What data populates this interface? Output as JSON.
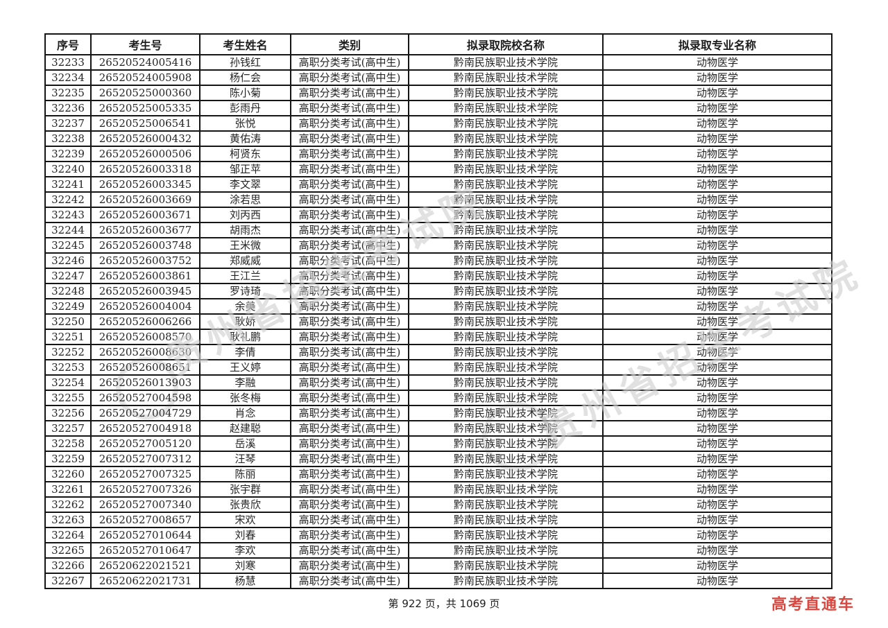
{
  "watermark": {
    "text": "贵州省招生考试院"
  },
  "table": {
    "column_keys": [
      "serial",
      "candidate-no",
      "name",
      "category",
      "institution",
      "major"
    ],
    "headers": [
      "序号",
      "考生号",
      "考生姓名",
      "类别",
      "拟录取院校名称",
      "拟录取专业名称"
    ],
    "rows": [
      [
        "32233",
        "26520524005416",
        "孙钱红",
        "高职分类考试(高中生)",
        "黔南民族职业技术学院",
        "动物医学"
      ],
      [
        "32234",
        "26520524005908",
        "杨仁会",
        "高职分类考试(高中生)",
        "黔南民族职业技术学院",
        "动物医学"
      ],
      [
        "32235",
        "26520525000360",
        "陈小菊",
        "高职分类考试(高中生)",
        "黔南民族职业技术学院",
        "动物医学"
      ],
      [
        "32236",
        "26520525005335",
        "彭雨丹",
        "高职分类考试(高中生)",
        "黔南民族职业技术学院",
        "动物医学"
      ],
      [
        "32237",
        "26520525006541",
        "张悦",
        "高职分类考试(高中生)",
        "黔南民族职业技术学院",
        "动物医学"
      ],
      [
        "32238",
        "26520526000432",
        "黄佑涛",
        "高职分类考试(高中生)",
        "黔南民族职业技术学院",
        "动物医学"
      ],
      [
        "32239",
        "26520526000506",
        "柯贤东",
        "高职分类考试(高中生)",
        "黔南民族职业技术学院",
        "动物医学"
      ],
      [
        "32240",
        "26520526003318",
        "邹正苹",
        "高职分类考试(高中生)",
        "黔南民族职业技术学院",
        "动物医学"
      ],
      [
        "32241",
        "26520526003345",
        "李文翠",
        "高职分类考试(高中生)",
        "黔南民族职业技术学院",
        "动物医学"
      ],
      [
        "32242",
        "26520526003669",
        "涂若思",
        "高职分类考试(高中生)",
        "黔南民族职业技术学院",
        "动物医学"
      ],
      [
        "32243",
        "26520526003671",
        "刘丙西",
        "高职分类考试(高中生)",
        "黔南民族职业技术学院",
        "动物医学"
      ],
      [
        "32244",
        "26520526003677",
        "胡雨杰",
        "高职分类考试(高中生)",
        "黔南民族职业技术学院",
        "动物医学"
      ],
      [
        "32245",
        "26520526003748",
        "王米微",
        "高职分类考试(高中生)",
        "黔南民族职业技术学院",
        "动物医学"
      ],
      [
        "32246",
        "26520526003752",
        "郑威威",
        "高职分类考试(高中生)",
        "黔南民族职业技术学院",
        "动物医学"
      ],
      [
        "32247",
        "26520526003861",
        "王江兰",
        "高职分类考试(高中生)",
        "黔南民族职业技术学院",
        "动物医学"
      ],
      [
        "32248",
        "26520526003945",
        "罗诗琦",
        "高职分类考试(高中生)",
        "黔南民族职业技术学院",
        "动物医学"
      ],
      [
        "32249",
        "26520526004004",
        "余美",
        "高职分类考试(高中生)",
        "黔南民族职业技术学院",
        "动物医学"
      ],
      [
        "32250",
        "26520526006266",
        "耿娇",
        "高职分类考试(高中生)",
        "黔南民族职业技术学院",
        "动物医学"
      ],
      [
        "32251",
        "26520526008570",
        "耿礼鹏",
        "高职分类考试(高中生)",
        "黔南民族职业技术学院",
        "动物医学"
      ],
      [
        "32252",
        "26520526008630",
        "李倩",
        "高职分类考试(高中生)",
        "黔南民族职业技术学院",
        "动物医学"
      ],
      [
        "32253",
        "26520526008651",
        "王义婷",
        "高职分类考试(高中生)",
        "黔南民族职业技术学院",
        "动物医学"
      ],
      [
        "32254",
        "26520526013903",
        "李融",
        "高职分类考试(高中生)",
        "黔南民族职业技术学院",
        "动物医学"
      ],
      [
        "32255",
        "26520527004598",
        "张冬梅",
        "高职分类考试(高中生)",
        "黔南民族职业技术学院",
        "动物医学"
      ],
      [
        "32256",
        "26520527004729",
        "肖念",
        "高职分类考试(高中生)",
        "黔南民族职业技术学院",
        "动物医学"
      ],
      [
        "32257",
        "26520527004918",
        "赵建聪",
        "高职分类考试(高中生)",
        "黔南民族职业技术学院",
        "动物医学"
      ],
      [
        "32258",
        "26520527005120",
        "岳溪",
        "高职分类考试(高中生)",
        "黔南民族职业技术学院",
        "动物医学"
      ],
      [
        "32259",
        "26520527007312",
        "汪琴",
        "高职分类考试(高中生)",
        "黔南民族职业技术学院",
        "动物医学"
      ],
      [
        "32260",
        "26520527007325",
        "陈丽",
        "高职分类考试(高中生)",
        "黔南民族职业技术学院",
        "动物医学"
      ],
      [
        "32261",
        "26520527007326",
        "张宇群",
        "高职分类考试(高中生)",
        "黔南民族职业技术学院",
        "动物医学"
      ],
      [
        "32262",
        "26520527007340",
        "张贵欣",
        "高职分类考试(高中生)",
        "黔南民族职业技术学院",
        "动物医学"
      ],
      [
        "32263",
        "26520527008657",
        "宋欢",
        "高职分类考试(高中生)",
        "黔南民族职业技术学院",
        "动物医学"
      ],
      [
        "32264",
        "26520527010644",
        "刘春",
        "高职分类考试(高中生)",
        "黔南民族职业技术学院",
        "动物医学"
      ],
      [
        "32265",
        "26520527010647",
        "李欢",
        "高职分类考试(高中生)",
        "黔南民族职业技术学院",
        "动物医学"
      ],
      [
        "32266",
        "26520622021521",
        "刘寒",
        "高职分类考试(高中生)",
        "黔南民族职业技术学院",
        "动物医学"
      ],
      [
        "32267",
        "26520622021731",
        "杨慧",
        "高职分类考试(高中生)",
        "黔南民族职业技术学院",
        "动物医学"
      ]
    ]
  },
  "footer": {
    "page_info": "第 922 页，共 1069 页",
    "current_page": "922",
    "total_pages": "1069",
    "brand": "高考直通车",
    "brand_color": "#d9473f"
  }
}
